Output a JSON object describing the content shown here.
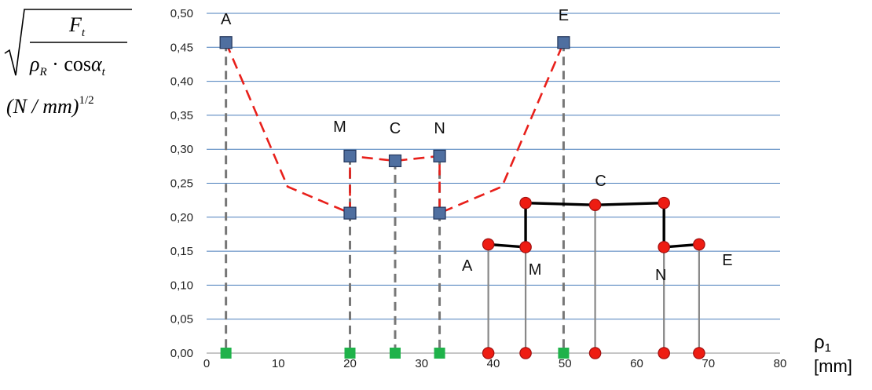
{
  "chart_data": {
    "type": "line",
    "ylabel": {
      "numerator": "F",
      "numerator_sub": "t",
      "rho": "ρ",
      "rho_sub": "R",
      "dot_cos": " · cos",
      "alpha": "α",
      "alpha_sub": "t",
      "units": "(N / mm)",
      "units_exp": "1/2"
    },
    "xlabel": {
      "symbol": "ρ",
      "sub": "1",
      "units": "[mm]"
    },
    "xlim": [
      0,
      80
    ],
    "ylim": [
      0,
      0.5
    ],
    "x_ticks": [
      0,
      10,
      20,
      30,
      40,
      50,
      60,
      70,
      80
    ],
    "x_tick_labels": [
      "0",
      "10",
      "20",
      "30",
      "40",
      "50",
      "60",
      "70",
      "80"
    ],
    "y_ticks": [
      0,
      0.05,
      0.1,
      0.15,
      0.2,
      0.25,
      0.3,
      0.35,
      0.4,
      0.45,
      0.5
    ],
    "y_tick_labels": [
      "0,00",
      "0,05",
      "0,10",
      "0,15",
      "0,20",
      "0,25",
      "0,30",
      "0,35",
      "0,40",
      "0,45",
      "0,50"
    ],
    "grid": "horizontal",
    "colors": {
      "grid": "#4a7ebb",
      "red_dashed": "#e8201b",
      "blue_marker": "#4f6fa0",
      "blue_marker_stroke": "#24375c",
      "green_marker": "#1fb24a",
      "red_marker": "#ee1c12",
      "red_marker_stroke": "#a01010",
      "black_line": "#000000",
      "drop_dashed": "#777777",
      "drop_solid": "#888888"
    },
    "series": [
      {
        "line_style": "red-dashed",
        "x": [
          2.7,
          11.3,
          20,
          20,
          26.3,
          32.5,
          32.5,
          41.2,
          49.8
        ],
        "y": [
          0.457,
          0.245,
          0.206,
          0.29,
          0.283,
          0.29,
          0.206,
          0.245,
          0.457
        ]
      },
      {
        "marker": "square-blue",
        "points": [
          {
            "label": "A",
            "x": 2.7,
            "y": 0.457
          },
          {
            "label": "M",
            "x": 20,
            "y": 0.29
          },
          {
            "label": "",
            "x": 20,
            "y": 0.206
          },
          {
            "label": "C",
            "x": 26.3,
            "y": 0.283
          },
          {
            "label": "N",
            "x": 32.5,
            "y": 0.29
          },
          {
            "label": "",
            "x": 32.5,
            "y": 0.206
          },
          {
            "label": "E",
            "x": 49.8,
            "y": 0.457
          }
        ]
      },
      {
        "marker": "square-green",
        "points": [
          {
            "x": 2.7,
            "y": 0
          },
          {
            "x": 20,
            "y": 0
          },
          {
            "x": 26.3,
            "y": 0
          },
          {
            "x": 32.5,
            "y": 0
          },
          {
            "x": 49.8,
            "y": 0
          }
        ]
      },
      {
        "line_style": "black-solid",
        "marker": "circle-red",
        "x": [
          39.3,
          44.5,
          44.5,
          54.2,
          63.8,
          63.8,
          68.7
        ],
        "y": [
          0.16,
          0.156,
          0.221,
          0.218,
          0.221,
          0.156,
          0.16
        ]
      },
      {
        "marker": "circle-red",
        "points": [
          {
            "x": 39.3,
            "y": 0
          },
          {
            "x": 44.5,
            "y": 0
          },
          {
            "x": 54.2,
            "y": 0
          },
          {
            "x": 63.8,
            "y": 0
          },
          {
            "x": 68.7,
            "y": 0
          }
        ]
      }
    ],
    "left_labels": [
      "A",
      "M",
      "C",
      "N",
      "E"
    ],
    "right_labels": [
      "A",
      "M",
      "C",
      "N",
      "E"
    ]
  }
}
